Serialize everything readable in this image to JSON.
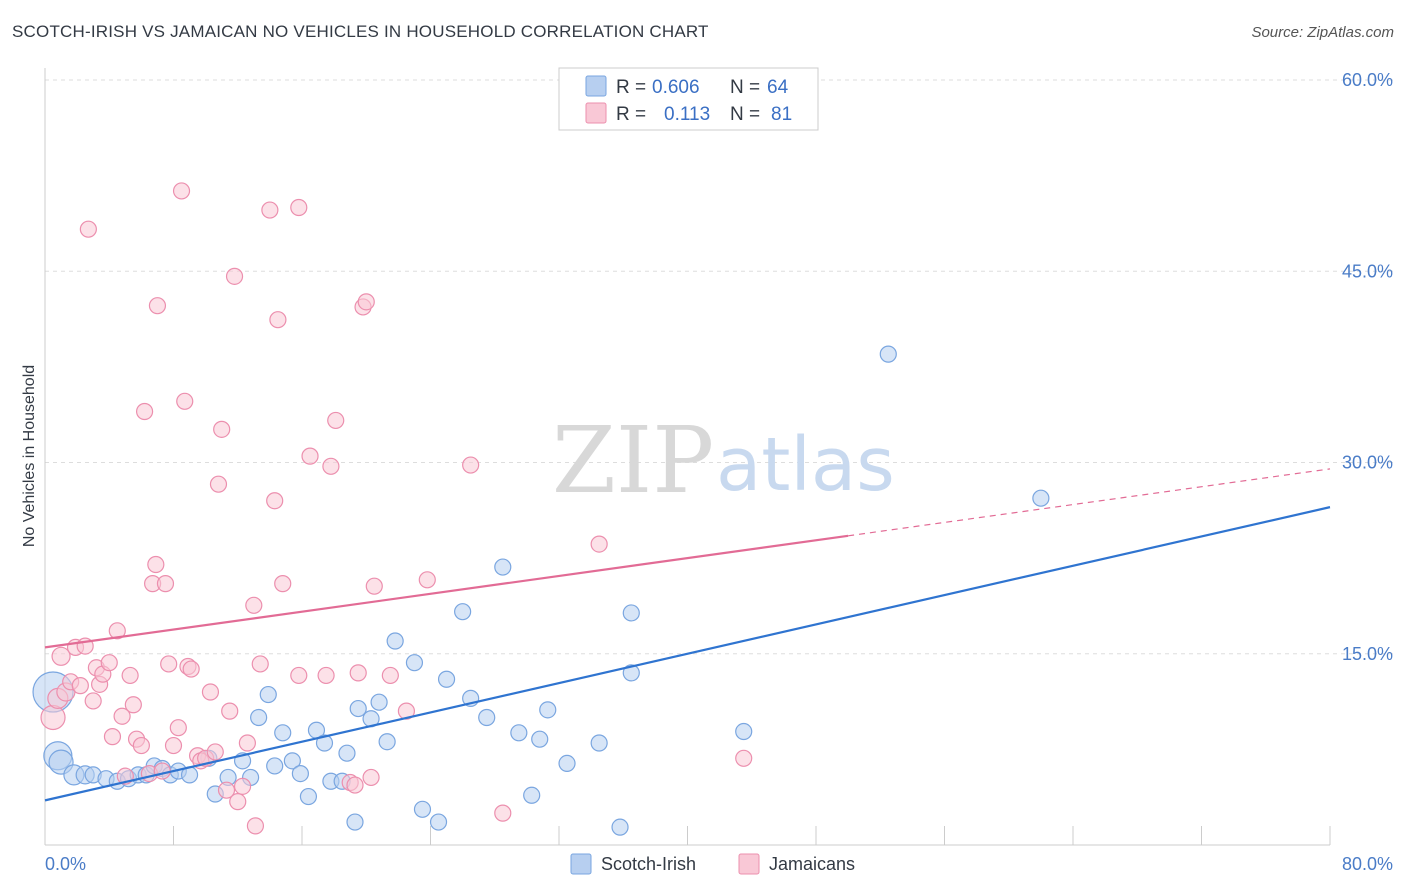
{
  "header": {
    "title": "SCOTCH-IRISH VS JAMAICAN NO VEHICLES IN HOUSEHOLD CORRELATION CHART",
    "source": "Source: ZipAtlas.com"
  },
  "watermark": {
    "zip": "ZIP",
    "atlas": "atlas"
  },
  "legend": {
    "r_label": "R =",
    "n_label": "N =",
    "rows": [
      {
        "r": "0.606",
        "n": "64",
        "color": "#a9c6ef"
      },
      {
        "r": "0.113",
        "n": "81",
        "color": "#f6b8cb"
      }
    ]
  },
  "bottom_legend": [
    "Scotch-Irish",
    "Jamaicans"
  ],
  "colors": {
    "blue_fill": "#b7cff0",
    "blue_stroke": "#7aa6e0",
    "blue_line": "#2f74d0",
    "pink_fill": "#f9c8d6",
    "pink_stroke": "#ec8fae",
    "pink_line": "#e26b95",
    "grid": "#dddddd",
    "axis_label": "#4a7cc7"
  },
  "chart_data": {
    "type": "scatter",
    "title": "SCOTCH-IRISH VS JAMAICAN NO VEHICLES IN HOUSEHOLD CORRELATION CHART",
    "ylabel": "No Vehicles in Household",
    "xlabel": "",
    "xlim": [
      0,
      80
    ],
    "ylim": [
      0,
      60
    ],
    "x_tick_labels": [
      "0.0%",
      "80.0%"
    ],
    "y_ticks": [
      15,
      30,
      45,
      60
    ],
    "y_tick_labels": [
      "15.0%",
      "30.0%",
      "45.0%",
      "60.0%"
    ],
    "grid": "horizontal dashed",
    "legend_position": "top-center",
    "series": [
      {
        "name": "Scotch-Irish",
        "r": 0.606,
        "n": 64,
        "trend": {
          "x": [
            0,
            80
          ],
          "y": [
            3.5,
            26.5
          ],
          "dashed_from": null
        },
        "points": [
          [
            0.5,
            12,
            20
          ],
          [
            0.8,
            7,
            14
          ],
          [
            1,
            6.5,
            12
          ],
          [
            1.8,
            5.5,
            10
          ],
          [
            2.5,
            5.5,
            9
          ],
          [
            3,
            5.5,
            8
          ],
          [
            3.8,
            5.2,
            8
          ],
          [
            4.5,
            5,
            8
          ],
          [
            5.2,
            5.2,
            8
          ],
          [
            5.8,
            5.5,
            8
          ],
          [
            6.3,
            5.5,
            8
          ],
          [
            6.8,
            6.2,
            8
          ],
          [
            7.3,
            6,
            8
          ],
          [
            7.8,
            5.5,
            8
          ],
          [
            8.3,
            5.8,
            8
          ],
          [
            9,
            5.5,
            8
          ],
          [
            10.2,
            6.8,
            8
          ],
          [
            10.6,
            4,
            8
          ],
          [
            11.4,
            5.3,
            8
          ],
          [
            12.3,
            6.6,
            8
          ],
          [
            12.8,
            5.3,
            8
          ],
          [
            13.3,
            10,
            8
          ],
          [
            13.9,
            11.8,
            8
          ],
          [
            14.3,
            6.2,
            8
          ],
          [
            14.8,
            8.8,
            8
          ],
          [
            15.4,
            6.6,
            8
          ],
          [
            15.9,
            5.6,
            8
          ],
          [
            16.4,
            3.8,
            8
          ],
          [
            16.9,
            9,
            8
          ],
          [
            17.4,
            8,
            8
          ],
          [
            17.8,
            5,
            8
          ],
          [
            18.5,
            5,
            8
          ],
          [
            18.8,
            7.2,
            8
          ],
          [
            19.3,
            1.8,
            8
          ],
          [
            19.5,
            10.7,
            8
          ],
          [
            20.3,
            9.9,
            8
          ],
          [
            20.8,
            11.2,
            8
          ],
          [
            21.3,
            8.1,
            8
          ],
          [
            21.8,
            16,
            8
          ],
          [
            23,
            14.3,
            8
          ],
          [
            23.5,
            2.8,
            8
          ],
          [
            24.5,
            1.8,
            8
          ],
          [
            25,
            13,
            8
          ],
          [
            26,
            18.3,
            8
          ],
          [
            26.5,
            11.5,
            8
          ],
          [
            27.5,
            10,
            8
          ],
          [
            28.5,
            21.8,
            8
          ],
          [
            29.5,
            8.8,
            8
          ],
          [
            30.3,
            3.9,
            8
          ],
          [
            30.8,
            8.3,
            8
          ],
          [
            31.3,
            10.6,
            8
          ],
          [
            32.5,
            6.4,
            8
          ],
          [
            34.5,
            8,
            8
          ],
          [
            35.8,
            1.4,
            8
          ],
          [
            36.5,
            13.5,
            8
          ],
          [
            36.5,
            18.2,
            8
          ],
          [
            43.5,
            8.9,
            8
          ],
          [
            52.5,
            38.5,
            8
          ],
          [
            62,
            27.2,
            8
          ]
        ]
      },
      {
        "name": "Jamaicans",
        "r": 0.113,
        "n": 81,
        "trend": {
          "x": [
            0,
            80
          ],
          "y": [
            15.5,
            29.5
          ],
          "dashed_from": 50
        },
        "points": [
          [
            0.5,
            10,
            12
          ],
          [
            0.8,
            11.5,
            10
          ],
          [
            1,
            14.8,
            9
          ],
          [
            1.3,
            12,
            9
          ],
          [
            1.6,
            12.8,
            8
          ],
          [
            1.9,
            15.5,
            8
          ],
          [
            2.2,
            12.5,
            8
          ],
          [
            2.5,
            15.6,
            8
          ],
          [
            2.7,
            48.3,
            8
          ],
          [
            3,
            11.3,
            8
          ],
          [
            3.2,
            13.9,
            8
          ],
          [
            3.4,
            12.6,
            8
          ],
          [
            3.6,
            13.4,
            8
          ],
          [
            4,
            14.3,
            8
          ],
          [
            4.2,
            8.5,
            8
          ],
          [
            4.5,
            16.8,
            8
          ],
          [
            4.8,
            10.1,
            8
          ],
          [
            5,
            5.4,
            8
          ],
          [
            5.3,
            13.3,
            8
          ],
          [
            5.5,
            11,
            8
          ],
          [
            5.7,
            8.3,
            8
          ],
          [
            6,
            7.8,
            8
          ],
          [
            6.2,
            34,
            8
          ],
          [
            6.5,
            5.6,
            8
          ],
          [
            6.7,
            20.5,
            8
          ],
          [
            6.9,
            22,
            8
          ],
          [
            7,
            42.3,
            8
          ],
          [
            7.3,
            5.8,
            8
          ],
          [
            7.5,
            20.5,
            8
          ],
          [
            7.7,
            14.2,
            8
          ],
          [
            8,
            7.8,
            8
          ],
          [
            8.3,
            9.2,
            8
          ],
          [
            8.5,
            51.3,
            8
          ],
          [
            8.7,
            34.8,
            8
          ],
          [
            8.9,
            14,
            8
          ],
          [
            9.1,
            13.8,
            8
          ],
          [
            9.5,
            7,
            8
          ],
          [
            9.7,
            6.6,
            8
          ],
          [
            10,
            6.8,
            8
          ],
          [
            10.3,
            12,
            8
          ],
          [
            10.6,
            7.3,
            8
          ],
          [
            10.8,
            28.3,
            8
          ],
          [
            11,
            32.6,
            8
          ],
          [
            11.3,
            4.3,
            8
          ],
          [
            11.5,
            10.5,
            8
          ],
          [
            11.8,
            44.6,
            8
          ],
          [
            12,
            3.4,
            8
          ],
          [
            12.3,
            4.6,
            8
          ],
          [
            12.6,
            8,
            8
          ],
          [
            13,
            18.8,
            8
          ],
          [
            13.1,
            1.5,
            8
          ],
          [
            13.4,
            14.2,
            8
          ],
          [
            14,
            49.8,
            8
          ],
          [
            14.3,
            27,
            8
          ],
          [
            14.5,
            41.2,
            8
          ],
          [
            14.8,
            20.5,
            8
          ],
          [
            15.8,
            13.3,
            8
          ],
          [
            15.8,
            50,
            8
          ],
          [
            16.5,
            30.5,
            8
          ],
          [
            17.5,
            13.3,
            8
          ],
          [
            17.8,
            29.7,
            8
          ],
          [
            18.1,
            33.3,
            8
          ],
          [
            19,
            4.9,
            8
          ],
          [
            19.3,
            4.7,
            8
          ],
          [
            19.5,
            13.5,
            8
          ],
          [
            19.8,
            42.2,
            8
          ],
          [
            20,
            42.6,
            8
          ],
          [
            20.3,
            5.3,
            8
          ],
          [
            20.5,
            20.3,
            8
          ],
          [
            21.5,
            13.3,
            8
          ],
          [
            22.5,
            10.5,
            8
          ],
          [
            23.8,
            20.8,
            8
          ],
          [
            26.5,
            29.8,
            8
          ],
          [
            28.5,
            2.5,
            8
          ],
          [
            34.5,
            23.6,
            8
          ],
          [
            43.5,
            6.8,
            8
          ]
        ]
      }
    ]
  }
}
